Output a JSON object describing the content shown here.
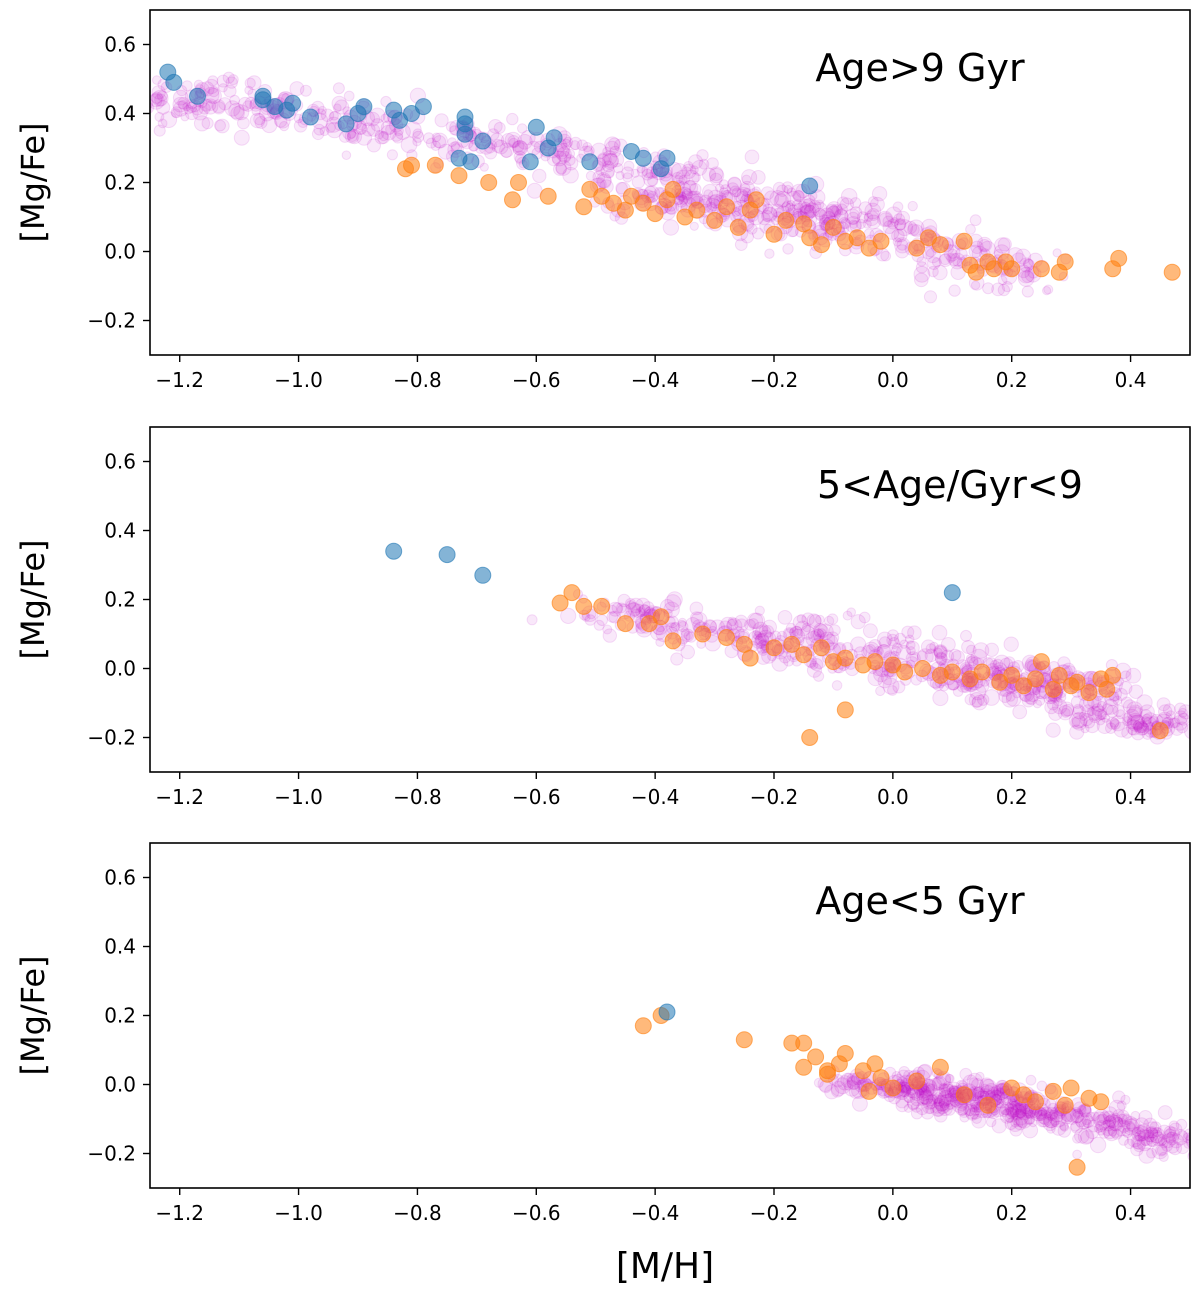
{
  "chart_data": [
    {
      "type": "scatter",
      "title": "Age>9 Gyr",
      "xlabel": "",
      "ylabel": "[Mg/Fe]",
      "xlim": [
        -1.25,
        0.5
      ],
      "ylim": [
        -0.3,
        0.7
      ],
      "xticks": [
        "-1.2",
        "-1.0",
        "-0.8",
        "-0.6",
        "-0.4",
        "-0.2",
        "0.0",
        "0.2",
        "0.4"
      ],
      "yticks": [
        "-0.2",
        "0.0",
        "0.2",
        "0.4",
        "0.6"
      ],
      "colors": {
        "cloud": "#c000c8",
        "blue": "#1f77b4",
        "orange": "#ff7f0e"
      },
      "cloud": [
        [
          -1.22,
          0.43
        ],
        [
          -1.15,
          0.44
        ],
        [
          -1.05,
          0.41
        ],
        [
          -0.95,
          0.39
        ],
        [
          -0.85,
          0.36
        ],
        [
          -0.75,
          0.33
        ],
        [
          -0.65,
          0.3
        ],
        [
          -0.55,
          0.27
        ],
        [
          -0.45,
          0.24
        ],
        [
          -0.35,
          0.2
        ],
        [
          -0.25,
          0.17
        ],
        [
          -0.15,
          0.13
        ],
        [
          -0.05,
          0.08
        ],
        [
          0.05,
          0.03
        ],
        [
          0.12,
          -0.02
        ],
        [
          0.2,
          -0.05
        ],
        [
          -0.3,
          0.12
        ],
        [
          -0.2,
          0.1
        ],
        [
          -0.1,
          0.07
        ],
        [
          -0.4,
          0.15
        ]
      ],
      "cloud_spread": 0.06,
      "blue": [
        [
          -1.22,
          0.52
        ],
        [
          -1.21,
          0.49
        ],
        [
          -1.17,
          0.45
        ],
        [
          -1.06,
          0.45
        ],
        [
          -1.06,
          0.44
        ],
        [
          -1.04,
          0.42
        ],
        [
          -1.02,
          0.41
        ],
        [
          -1.01,
          0.43
        ],
        [
          -0.98,
          0.39
        ],
        [
          -0.92,
          0.37
        ],
        [
          -0.9,
          0.4
        ],
        [
          -0.89,
          0.42
        ],
        [
          -0.84,
          0.41
        ],
        [
          -0.83,
          0.38
        ],
        [
          -0.81,
          0.4
        ],
        [
          -0.79,
          0.42
        ],
        [
          -0.73,
          0.27
        ],
        [
          -0.72,
          0.39
        ],
        [
          -0.72,
          0.37
        ],
        [
          -0.72,
          0.34
        ],
        [
          -0.71,
          0.26
        ],
        [
          -0.69,
          0.32
        ],
        [
          -0.61,
          0.26
        ],
        [
          -0.6,
          0.36
        ],
        [
          -0.58,
          0.3
        ],
        [
          -0.57,
          0.33
        ],
        [
          -0.51,
          0.26
        ],
        [
          -0.44,
          0.29
        ],
        [
          -0.42,
          0.27
        ],
        [
          -0.39,
          0.24
        ],
        [
          -0.38,
          0.27
        ],
        [
          -0.14,
          0.19
        ]
      ],
      "orange": [
        [
          -0.82,
          0.24
        ],
        [
          -0.81,
          0.25
        ],
        [
          -0.77,
          0.25
        ],
        [
          -0.73,
          0.22
        ],
        [
          -0.68,
          0.2
        ],
        [
          -0.64,
          0.15
        ],
        [
          -0.63,
          0.2
        ],
        [
          -0.58,
          0.16
        ],
        [
          -0.52,
          0.13
        ],
        [
          -0.51,
          0.18
        ],
        [
          -0.49,
          0.16
        ],
        [
          -0.47,
          0.14
        ],
        [
          -0.45,
          0.12
        ],
        [
          -0.44,
          0.16
        ],
        [
          -0.42,
          0.14
        ],
        [
          -0.4,
          0.11
        ],
        [
          -0.38,
          0.15
        ],
        [
          -0.37,
          0.18
        ],
        [
          -0.35,
          0.1
        ],
        [
          -0.33,
          0.12
        ],
        [
          -0.3,
          0.09
        ],
        [
          -0.28,
          0.13
        ],
        [
          -0.26,
          0.07
        ],
        [
          -0.24,
          0.12
        ],
        [
          -0.23,
          0.15
        ],
        [
          -0.2,
          0.05
        ],
        [
          -0.18,
          0.09
        ],
        [
          -0.15,
          0.08
        ],
        [
          -0.14,
          0.04
        ],
        [
          -0.12,
          0.02
        ],
        [
          -0.1,
          0.07
        ],
        [
          -0.08,
          0.03
        ],
        [
          -0.06,
          0.04
        ],
        [
          -0.04,
          0.01
        ],
        [
          -0.02,
          0.03
        ],
        [
          0.04,
          0.01
        ],
        [
          0.06,
          0.04
        ],
        [
          0.08,
          0.02
        ],
        [
          0.12,
          0.03
        ],
        [
          0.13,
          -0.04
        ],
        [
          0.14,
          -0.06
        ],
        [
          0.16,
          -0.03
        ],
        [
          0.17,
          -0.05
        ],
        [
          0.19,
          -0.03
        ],
        [
          0.2,
          -0.05
        ],
        [
          0.25,
          -0.05
        ],
        [
          0.28,
          -0.06
        ],
        [
          0.29,
          -0.03
        ],
        [
          0.37,
          -0.05
        ],
        [
          0.38,
          -0.02
        ],
        [
          0.47,
          -0.06
        ]
      ]
    },
    {
      "type": "scatter",
      "title": "5<Age/Gyr<9",
      "xlabel": "",
      "ylabel": "[Mg/Fe]",
      "xlim": [
        -1.25,
        0.5
      ],
      "ylim": [
        -0.3,
        0.7
      ],
      "xticks": [
        "-1.2",
        "-1.0",
        "-0.8",
        "-0.6",
        "-0.4",
        "-0.2",
        "0.0",
        "0.2",
        "0.4"
      ],
      "yticks": [
        "-0.2",
        "0.0",
        "0.2",
        "0.4",
        "0.6"
      ],
      "colors": {
        "cloud": "#c000c8",
        "blue": "#1f77b4",
        "orange": "#ff7f0e"
      },
      "cloud": [
        [
          -0.45,
          0.16
        ],
        [
          -0.38,
          0.13
        ],
        [
          -0.3,
          0.1
        ],
        [
          -0.2,
          0.07
        ],
        [
          -0.1,
          0.04
        ],
        [
          0.0,
          0.01
        ],
        [
          0.1,
          -0.03
        ],
        [
          0.2,
          -0.06
        ],
        [
          0.28,
          -0.09
        ],
        [
          0.35,
          -0.13
        ],
        [
          0.42,
          -0.15
        ],
        [
          0.46,
          -0.17
        ],
        [
          -0.15,
          0.12
        ],
        [
          0.05,
          0.06
        ],
        [
          0.15,
          0.0
        ],
        [
          0.25,
          -0.02
        ],
        [
          0.32,
          -0.05
        ]
      ],
      "cloud_spread": 0.045,
      "blue": [
        [
          -0.84,
          0.34
        ],
        [
          -0.75,
          0.33
        ],
        [
          -0.69,
          0.27
        ],
        [
          0.1,
          0.22
        ]
      ],
      "orange": [
        [
          -0.56,
          0.19
        ],
        [
          -0.54,
          0.22
        ],
        [
          -0.52,
          0.18
        ],
        [
          -0.49,
          0.18
        ],
        [
          -0.45,
          0.13
        ],
        [
          -0.41,
          0.13
        ],
        [
          -0.39,
          0.15
        ],
        [
          -0.37,
          0.08
        ],
        [
          -0.32,
          0.1
        ],
        [
          -0.28,
          0.09
        ],
        [
          -0.25,
          0.07
        ],
        [
          -0.24,
          0.03
        ],
        [
          -0.2,
          0.06
        ],
        [
          -0.17,
          0.07
        ],
        [
          -0.15,
          0.04
        ],
        [
          -0.12,
          0.06
        ],
        [
          -0.1,
          0.02
        ],
        [
          -0.08,
          0.03
        ],
        [
          -0.05,
          0.01
        ],
        [
          -0.03,
          0.02
        ],
        [
          0.0,
          0.01
        ],
        [
          0.02,
          -0.01
        ],
        [
          0.05,
          0.0
        ],
        [
          0.08,
          -0.02
        ],
        [
          0.1,
          -0.01
        ],
        [
          0.13,
          -0.03
        ],
        [
          0.15,
          -0.01
        ],
        [
          0.18,
          -0.04
        ],
        [
          0.2,
          -0.02
        ],
        [
          0.22,
          -0.05
        ],
        [
          0.24,
          -0.03
        ],
        [
          0.25,
          0.02
        ],
        [
          0.27,
          -0.06
        ],
        [
          0.28,
          -0.02
        ],
        [
          0.3,
          -0.05
        ],
        [
          0.31,
          -0.04
        ],
        [
          0.33,
          -0.07
        ],
        [
          0.35,
          -0.03
        ],
        [
          0.36,
          -0.06
        ],
        [
          0.37,
          -0.02
        ],
        [
          0.45,
          -0.18
        ],
        [
          -0.14,
          -0.2
        ],
        [
          -0.08,
          -0.12
        ]
      ]
    },
    {
      "type": "scatter",
      "title": "Age<5 Gyr",
      "xlabel": "[M/H]",
      "ylabel": "[Mg/Fe]",
      "xlim": [
        -1.25,
        0.5
      ],
      "ylim": [
        -0.3,
        0.7
      ],
      "xticks": [
        "-1.2",
        "-1.0",
        "-0.8",
        "-0.6",
        "-0.4",
        "-0.2",
        "0.0",
        "0.2",
        "0.4"
      ],
      "yticks": [
        "-0.2",
        "0.0",
        "0.2",
        "0.4",
        "0.6"
      ],
      "colors": {
        "cloud": "#c000c8",
        "blue": "#1f77b4",
        "orange": "#ff7f0e"
      },
      "cloud": [
        [
          -0.05,
          0.0
        ],
        [
          0.02,
          -0.01
        ],
        [
          0.08,
          -0.03
        ],
        [
          0.14,
          -0.04
        ],
        [
          0.2,
          -0.06
        ],
        [
          0.26,
          -0.08
        ],
        [
          0.32,
          -0.1
        ],
        [
          0.38,
          -0.12
        ],
        [
          0.44,
          -0.15
        ],
        [
          0.48,
          -0.17
        ],
        [
          0.1,
          -0.06
        ],
        [
          0.2,
          -0.09
        ],
        [
          0.05,
          0.01
        ],
        [
          0.16,
          -0.02
        ]
      ],
      "cloud_spread": 0.035,
      "blue": [
        [
          -0.38,
          0.21
        ]
      ],
      "orange": [
        [
          -0.42,
          0.17
        ],
        [
          -0.39,
          0.2
        ],
        [
          -0.25,
          0.13
        ],
        [
          -0.17,
          0.12
        ],
        [
          -0.15,
          0.12
        ],
        [
          -0.15,
          0.05
        ],
        [
          -0.13,
          0.08
        ],
        [
          -0.11,
          0.04
        ],
        [
          -0.11,
          0.03
        ],
        [
          -0.09,
          0.06
        ],
        [
          -0.08,
          0.09
        ],
        [
          -0.05,
          0.04
        ],
        [
          -0.04,
          -0.02
        ],
        [
          -0.03,
          0.06
        ],
        [
          -0.02,
          0.02
        ],
        [
          0.0,
          -0.01
        ],
        [
          0.04,
          0.01
        ],
        [
          0.08,
          0.05
        ],
        [
          0.12,
          -0.03
        ],
        [
          0.16,
          -0.06
        ],
        [
          0.2,
          -0.01
        ],
        [
          0.22,
          -0.03
        ],
        [
          0.24,
          -0.05
        ],
        [
          0.27,
          -0.02
        ],
        [
          0.29,
          -0.06
        ],
        [
          0.3,
          -0.01
        ],
        [
          0.33,
          -0.04
        ],
        [
          0.35,
          -0.05
        ],
        [
          0.31,
          -0.24
        ]
      ]
    }
  ]
}
